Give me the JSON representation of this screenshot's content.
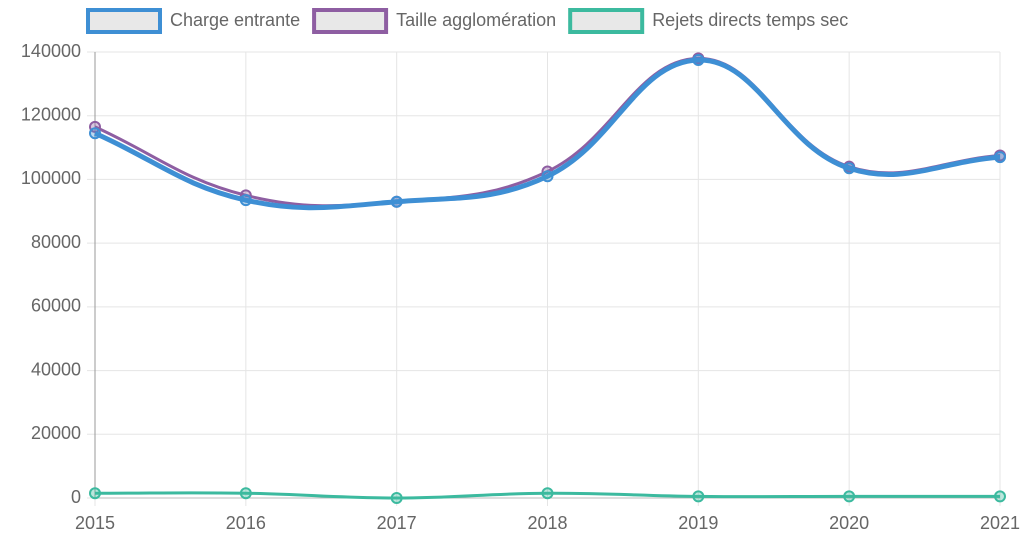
{
  "chart_data": {
    "type": "line",
    "categories": [
      "2015",
      "2016",
      "2017",
      "2018",
      "2019",
      "2020",
      "2021"
    ],
    "series": [
      {
        "name": "Charge entrante",
        "color": "#3e8fd4",
        "values": [
          114500,
          93500,
          93000,
          101000,
          137500,
          103500,
          107000
        ]
      },
      {
        "name": "Taille agglomération",
        "color": "#8e5ea2",
        "values": [
          116500,
          95000,
          93000,
          102500,
          138000,
          104000,
          107500
        ]
      },
      {
        "name": "Rejets directs temps sec",
        "color": "#3cba9f",
        "values": [
          1500,
          1500,
          0,
          1500,
          500,
          500,
          500
        ]
      }
    ],
    "ylim": [
      0,
      140000
    ],
    "yticks": [
      0,
      20000,
      40000,
      60000,
      80000,
      100000,
      120000,
      140000
    ],
    "grid": true,
    "legend": "top"
  }
}
